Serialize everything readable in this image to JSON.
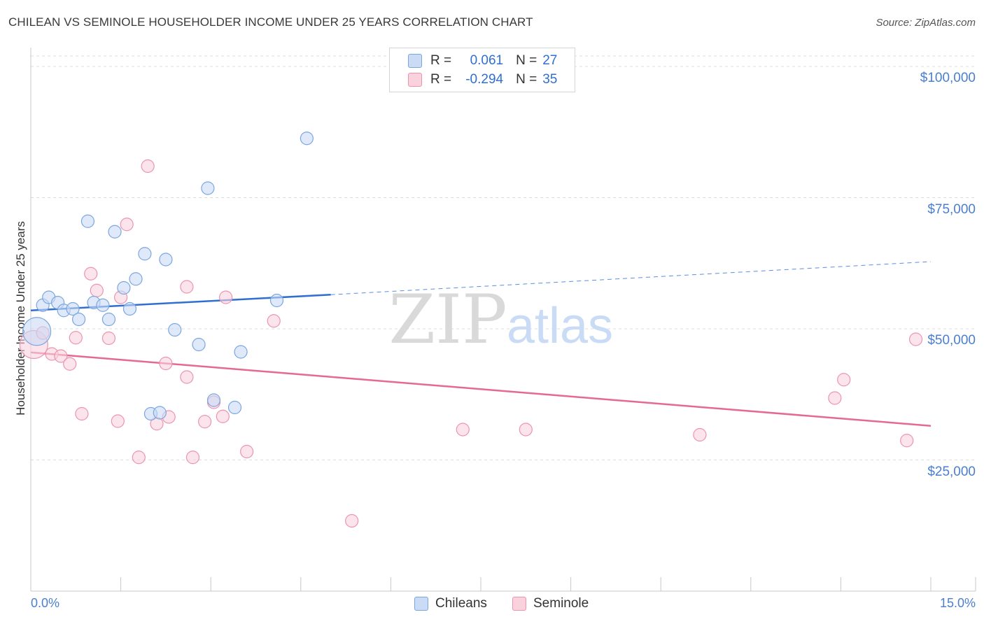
{
  "title": "CHILEAN VS SEMINOLE HOUSEHOLDER INCOME UNDER 25 YEARS CORRELATION CHART",
  "source": "Source: ZipAtlas.com",
  "watermark": {
    "zip": "ZIP",
    "atlas": "atlas"
  },
  "legend": {
    "rows": [
      {
        "r_label": "R =",
        "r_value": "0.061",
        "n_label": "N =",
        "n_value": "27",
        "color": "#a9c6ef",
        "border": "#7aa6e0"
      },
      {
        "r_label": "R =",
        "r_value": "-0.294",
        "n_label": "N =",
        "n_value": "35",
        "color": "#f7bfcf",
        "border": "#eb94ad"
      }
    ]
  },
  "bottom_legend": {
    "chileans": "Chileans",
    "seminole": "Seminole"
  },
  "chart_data": {
    "type": "scatter",
    "title": "CHILEAN VS SEMINOLE HOUSEHOLDER INCOME UNDER 25 YEARS CORRELATION CHART",
    "xlabel": "",
    "ylabel": "Householder Income Under 25 years",
    "xlim": [
      0,
      15
    ],
    "ylim": [
      0,
      102000
    ],
    "x_tick_labels": [
      "0.0%",
      "15.0%"
    ],
    "y_ticks": [
      25000,
      50000,
      75000,
      100000
    ],
    "y_tick_labels": [
      "$25,000",
      "$50,000",
      "$75,000",
      "$100,000"
    ],
    "grid": "horizontal dashed",
    "legend_position": "top-center",
    "series": [
      {
        "name": "Chileans",
        "color": "#7aa6e0",
        "fill": "#c9dbf5",
        "points": [
          {
            "x": 0.1,
            "y": 49500,
            "big": true
          },
          {
            "x": 0.2,
            "y": 54500
          },
          {
            "x": 0.3,
            "y": 56000
          },
          {
            "x": 0.45,
            "y": 55000
          },
          {
            "x": 0.55,
            "y": 53500
          },
          {
            "x": 0.7,
            "y": 53800
          },
          {
            "x": 0.8,
            "y": 51800
          },
          {
            "x": 0.95,
            "y": 70500
          },
          {
            "x": 1.05,
            "y": 55000
          },
          {
            "x": 1.2,
            "y": 54500
          },
          {
            "x": 1.3,
            "y": 51800
          },
          {
            "x": 1.4,
            "y": 68500
          },
          {
            "x": 1.55,
            "y": 57800
          },
          {
            "x": 1.65,
            "y": 53800
          },
          {
            "x": 1.75,
            "y": 59500
          },
          {
            "x": 1.9,
            "y": 64300
          },
          {
            "x": 2.0,
            "y": 33800
          },
          {
            "x": 2.15,
            "y": 34000
          },
          {
            "x": 2.25,
            "y": 63200
          },
          {
            "x": 2.4,
            "y": 49800
          },
          {
            "x": 2.8,
            "y": 47000
          },
          {
            "x": 2.95,
            "y": 76800
          },
          {
            "x": 3.05,
            "y": 36400
          },
          {
            "x": 3.4,
            "y": 35000
          },
          {
            "x": 3.5,
            "y": 45600
          },
          {
            "x": 4.1,
            "y": 55400
          },
          {
            "x": 4.6,
            "y": 86300
          }
        ],
        "trend": {
          "x0": 0,
          "y0": 53500,
          "x1": 5.0,
          "y1": 56500,
          "dashed_to_x": 15,
          "dashed_to_y": 62800
        }
      },
      {
        "name": "Seminole",
        "color": "#eb94ad",
        "fill": "#f9d2dd",
        "points": [
          {
            "x": 0.05,
            "y": 47000,
            "big": true
          },
          {
            "x": 0.2,
            "y": 49200
          },
          {
            "x": 0.35,
            "y": 45200
          },
          {
            "x": 0.5,
            "y": 44800
          },
          {
            "x": 0.65,
            "y": 43300
          },
          {
            "x": 0.75,
            "y": 48300
          },
          {
            "x": 0.85,
            "y": 33800
          },
          {
            "x": 1.0,
            "y": 60500
          },
          {
            "x": 1.1,
            "y": 57300
          },
          {
            "x": 1.3,
            "y": 48200
          },
          {
            "x": 1.45,
            "y": 32400
          },
          {
            "x": 1.5,
            "y": 56000
          },
          {
            "x": 1.6,
            "y": 69900
          },
          {
            "x": 1.8,
            "y": 25500
          },
          {
            "x": 1.95,
            "y": 81000
          },
          {
            "x": 2.1,
            "y": 31900
          },
          {
            "x": 2.25,
            "y": 43400
          },
          {
            "x": 2.3,
            "y": 33200
          },
          {
            "x": 2.6,
            "y": 40800
          },
          {
            "x": 2.6,
            "y": 58000
          },
          {
            "x": 2.7,
            "y": 25500
          },
          {
            "x": 2.9,
            "y": 32300
          },
          {
            "x": 3.05,
            "y": 36000
          },
          {
            "x": 3.2,
            "y": 33300
          },
          {
            "x": 3.25,
            "y": 56000
          },
          {
            "x": 3.6,
            "y": 26600
          },
          {
            "x": 4.05,
            "y": 51500
          },
          {
            "x": 5.35,
            "y": 13400
          },
          {
            "x": 7.2,
            "y": 30800
          },
          {
            "x": 8.25,
            "y": 30800
          },
          {
            "x": 11.15,
            "y": 29800
          },
          {
            "x": 13.4,
            "y": 36800
          },
          {
            "x": 13.55,
            "y": 40300
          },
          {
            "x": 14.6,
            "y": 28700
          },
          {
            "x": 14.75,
            "y": 48000
          }
        ],
        "trend": {
          "x0": 0,
          "y0": 45500,
          "x1": 15,
          "y1": 31500
        }
      }
    ]
  }
}
